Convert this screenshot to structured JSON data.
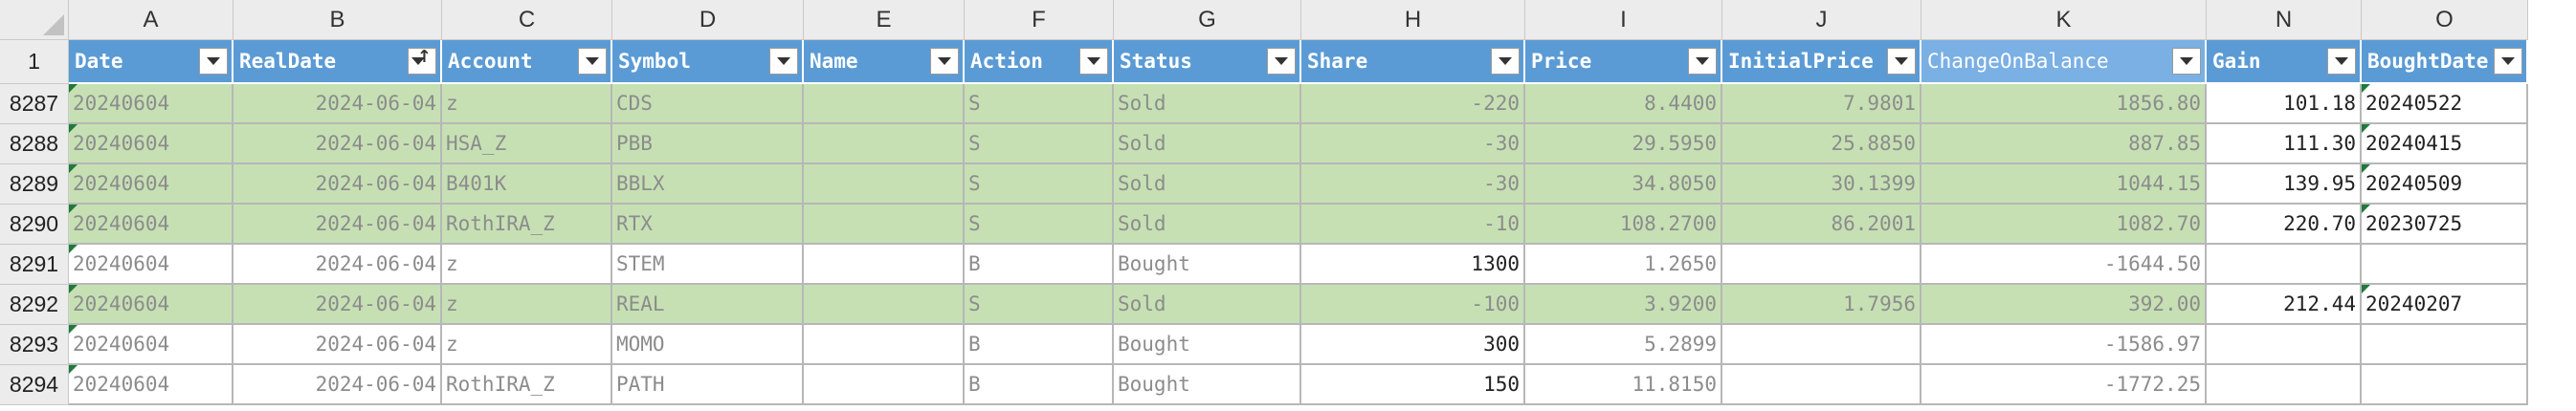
{
  "columns": [
    "A",
    "B",
    "C",
    "D",
    "E",
    "F",
    "G",
    "H",
    "I",
    "J",
    "K",
    "N",
    "O"
  ],
  "header_row_label": "1",
  "headers": [
    "Date",
    "RealDate",
    "Account",
    "Symbol",
    "Name",
    "Action",
    "Status",
    "Share",
    "Price",
    "InitialPrice",
    "ChangeOnBalance",
    "Gain",
    "BoughtDate"
  ],
  "rows": [
    {
      "label": "8287",
      "green": true,
      "cells": [
        "20240604",
        "2024-06-04",
        "z",
        "CDS",
        "",
        "S",
        "Sold",
        "-220",
        "8.4400",
        "7.9801",
        "1856.80",
        "101.18",
        "20240522"
      ]
    },
    {
      "label": "8288",
      "green": true,
      "cells": [
        "20240604",
        "2024-06-04",
        "HSA_Z",
        "PBB",
        "",
        "S",
        "Sold",
        "-30",
        "29.5950",
        "25.8850",
        "887.85",
        "111.30",
        "20240415"
      ]
    },
    {
      "label": "8289",
      "green": true,
      "cells": [
        "20240604",
        "2024-06-04",
        "B401K",
        "BBLX",
        "",
        "S",
        "Sold",
        "-30",
        "34.8050",
        "30.1399",
        "1044.15",
        "139.95",
        "20240509"
      ]
    },
    {
      "label": "8290",
      "green": true,
      "cells": [
        "20240604",
        "2024-06-04",
        "RothIRA_Z",
        "RTX",
        "",
        "S",
        "Sold",
        "-10",
        "108.2700",
        "86.2001",
        "1082.70",
        "220.70",
        "20230725"
      ]
    },
    {
      "label": "8291",
      "green": false,
      "cells": [
        "20240604",
        "2024-06-04",
        "z",
        "STEM",
        "",
        "B",
        "Bought",
        "1300",
        "1.2650",
        "",
        "-1644.50",
        "",
        ""
      ]
    },
    {
      "label": "8292",
      "green": true,
      "cells": [
        "20240604",
        "2024-06-04",
        "z",
        "REAL",
        "",
        "S",
        "Sold",
        "-100",
        "3.9200",
        "1.7956",
        "392.00",
        "212.44",
        "20240207"
      ]
    },
    {
      "label": "8293",
      "green": false,
      "cells": [
        "20240604",
        "2024-06-04",
        "z",
        "MOMO",
        "",
        "B",
        "Bought",
        "300",
        "5.2899",
        "",
        "-1586.97",
        "",
        ""
      ]
    },
    {
      "label": "8294",
      "green": false,
      "cells": [
        "20240604",
        "2024-06-04",
        "RothIRA_Z",
        "PATH",
        "",
        "B",
        "Bought",
        "150",
        "11.8150",
        "",
        "-1772.25",
        "",
        ""
      ]
    }
  ]
}
